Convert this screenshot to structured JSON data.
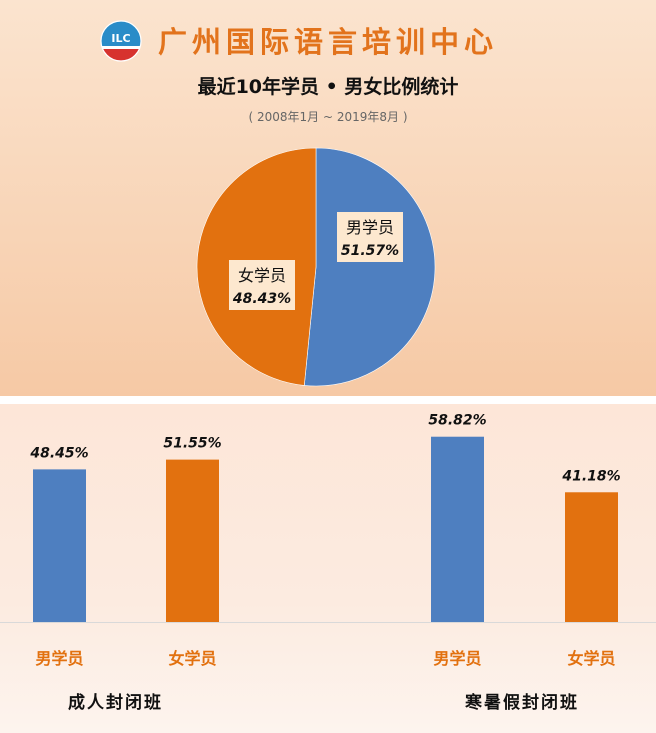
{
  "header": {
    "org_name": "广州国际语言培训中心",
    "logo_text": "ILC",
    "logo_colors": {
      "top": "#2a8cc8",
      "bottom": "#d7322e"
    }
  },
  "colors": {
    "male": "#4e7fc0",
    "female": "#e2710f",
    "label_box": "#fde8cf",
    "category_label": "#e2710f"
  },
  "chart_data": [
    {
      "type": "pie",
      "title": "最近10年学员 • 男女比例统计",
      "subtitle": "( 2008年1月 ~ 2019年8月 )",
      "slices": [
        {
          "label": "男学员",
          "value": 51.57,
          "display": "51.57%"
        },
        {
          "label": "女学员",
          "value": 48.43,
          "display": "48.43%"
        }
      ]
    },
    {
      "type": "bar",
      "group": "成人封闭班",
      "categories": [
        "男学员",
        "女学员"
      ],
      "values": [
        48.45,
        51.55
      ],
      "labels": [
        "48.45%",
        "51.55%"
      ]
    },
    {
      "type": "bar",
      "group": "寒暑假封闭班",
      "categories": [
        "男学员",
        "女学员"
      ],
      "values": [
        58.82,
        41.18
      ],
      "labels": [
        "58.82%",
        "41.18%"
      ]
    }
  ],
  "groups": {
    "adult": "成人封闭班",
    "holiday": "寒暑假封闭班"
  }
}
